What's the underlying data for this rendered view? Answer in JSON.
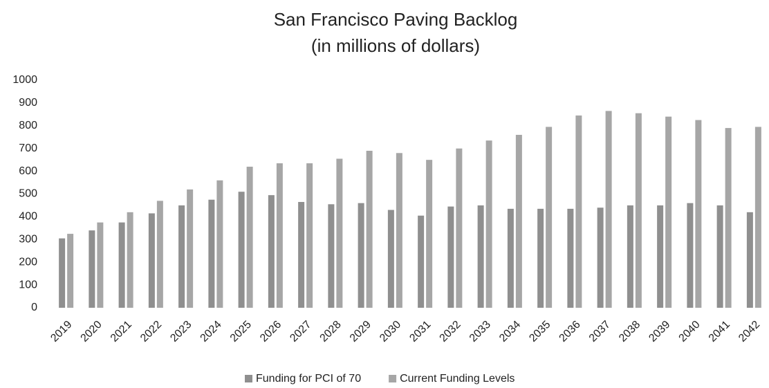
{
  "chart_data": {
    "type": "bar",
    "title": "San Francisco Paving Backlog",
    "subtitle": "(in millions of dollars)",
    "categories": [
      "2019",
      "2020",
      "2021",
      "2022",
      "2023",
      "2024",
      "2025",
      "2026",
      "2027",
      "2028",
      "2029",
      "2030",
      "2031",
      "2032",
      "2033",
      "2034",
      "2035",
      "2036",
      "2037",
      "2038",
      "2039",
      "2040",
      "2041",
      "2042"
    ],
    "series": [
      {
        "name": "Funding for PCI of 70",
        "color": "#8f8f8f",
        "values": [
          305,
          340,
          375,
          415,
          450,
          475,
          510,
          495,
          465,
          455,
          460,
          430,
          405,
          445,
          450,
          435,
          435,
          435,
          440,
          450,
          450,
          460,
          450,
          420
        ]
      },
      {
        "name": "Current Funding Levels",
        "color": "#a6a6a6",
        "values": [
          325,
          375,
          420,
          470,
          520,
          560,
          620,
          635,
          635,
          655,
          690,
          680,
          650,
          700,
          735,
          760,
          795,
          845,
          865,
          855,
          840,
          825,
          790,
          795
        ]
      }
    ],
    "ylim": [
      0,
      1000
    ],
    "yticks": [
      0,
      100,
      200,
      300,
      400,
      500,
      600,
      700,
      800,
      900,
      1000
    ],
    "grid": false,
    "legend": "bottom"
  }
}
